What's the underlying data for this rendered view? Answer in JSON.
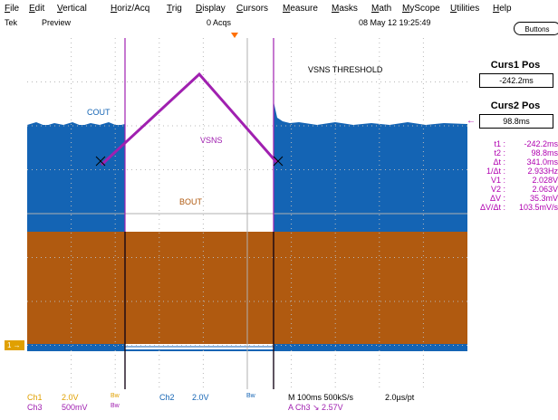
{
  "menu": [
    "File",
    "Edit",
    "Vertical",
    "Horiz/Acq",
    "Trig",
    "Display",
    "Cursors",
    "Measure",
    "Masks",
    "Math",
    "MyScope",
    "Utilities",
    "Help"
  ],
  "status": {
    "brand": "Tek",
    "mode": "Preview",
    "acqs": "0 Acqs",
    "datetime": "08 May 12 19:25:49"
  },
  "buttons_label": "Buttons",
  "labels": {
    "cout": "COUT",
    "vsns": "VSNS",
    "bout": "BOUT",
    "threshold": "VSNS THRESHOLD"
  },
  "cursors": {
    "curs1_title": "Curs1 Pos",
    "curs1_value": "-242.2ms",
    "curs2_title": "Curs2 Pos",
    "curs2_value": "98.8ms"
  },
  "readout": [
    {
      "k": "t1 :",
      "v": "-242.2ms"
    },
    {
      "k": "t2 :",
      "v": "98.8ms"
    },
    {
      "k": "Δt :",
      "v": "341.0ms"
    },
    {
      "k": "1/Δt :",
      "v": "2.933Hz"
    },
    {
      "k": "V1 :",
      "v": "2.028V"
    },
    {
      "k": "V2 :",
      "v": "2.063V"
    },
    {
      "k": "ΔV :",
      "v": "35.3mV"
    },
    {
      "k": "ΔV/Δt :",
      "v": "103.5mV/s"
    }
  ],
  "bottom": {
    "ch1": "Ch1",
    "ch1_scale": "2.0V",
    "bw1": "Bw",
    "ch2": "Ch2",
    "ch2_scale": "2.0V",
    "bw2": "Bw",
    "ch3": "Ch3",
    "ch3_scale": "500mV",
    "bw3": "Bw",
    "timebase": "M 100ms 500kS/s",
    "pt": "2.0µs/pt",
    "trigger": "A  Ch3  ↘  2.57V"
  },
  "ch1_marker": "1",
  "colors": {
    "blue": "#1464b4",
    "brown": "#b05a10",
    "purple": "#a020b0",
    "cursor": "#000000",
    "orange": "#e0a000"
  }
}
